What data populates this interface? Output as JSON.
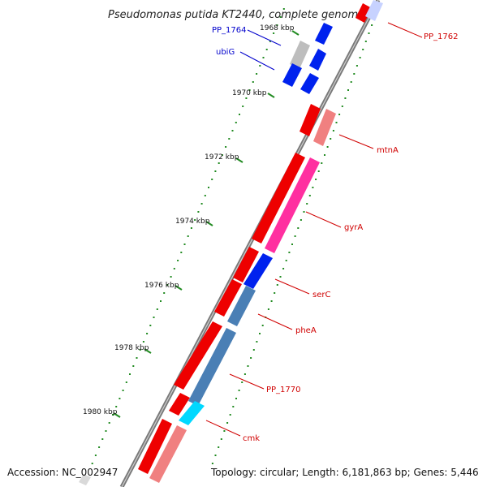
{
  "title": "Pseudomonas putida KT2440, complete genome",
  "footer": {
    "accession": "Accession: NC_002947",
    "topology": "Topology: circular; Length: 6,181,863 bp; Genes: 5,446"
  },
  "ticks": [
    "1968 kbp",
    "1970 kbp",
    "1972 kbp",
    "1974 kbp",
    "1976 kbp",
    "1978 kbp",
    "1980 kbp"
  ],
  "labels": [
    "PP_1762",
    "PP_1764",
    "ubiG",
    "mtnA",
    "gyrA",
    "serC",
    "pheA",
    "PP_1770",
    "cmk"
  ],
  "colors": {
    "red": "#ee0000",
    "label_red": "#d00000",
    "label_blue": "#0000cc",
    "blue": "#0022ee",
    "pink": "#ff2fa0",
    "light_red": "#f08080",
    "steel": "#4a7fb5",
    "cyan": "#00d8ff",
    "gray": "#bdbdbd",
    "backbone": "#8c8c8c",
    "tick": "#228b22"
  }
}
